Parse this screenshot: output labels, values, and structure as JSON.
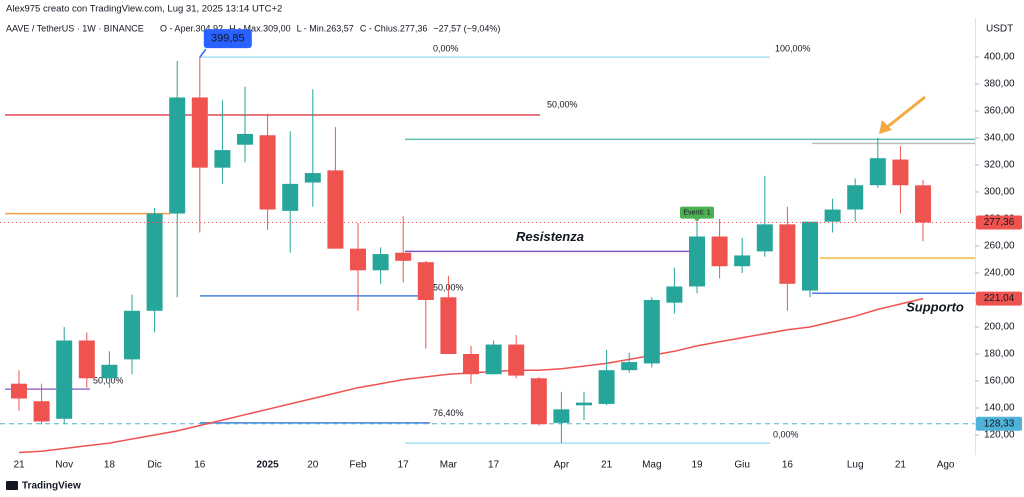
{
  "header": {
    "author_line": "Alex975 creato con TradingView.com, Lug 31, 2025 13:14 UTC+2",
    "symbol": "AAVE / TetherUS · 1W · BINANCE",
    "ohlc": [
      {
        "prefix": "O - Aper.",
        "text": "304,92"
      },
      {
        "prefix": "H - Max.",
        "text": "309,00"
      },
      {
        "prefix": "L - Min.",
        "text": "263,57"
      },
      {
        "prefix": "C - Chius.",
        "text": "277,36"
      }
    ],
    "change": "−27,57 (−9,04%)",
    "currency": "USDT"
  },
  "chart_data": {
    "type": "candlestick",
    "categories": [
      "21",
      null,
      "Nov",
      null,
      "18",
      null,
      "Dic",
      null,
      "16",
      null,
      null,
      "2025",
      null,
      "20",
      null,
      "Feb",
      null,
      "17",
      null,
      "Mar",
      null,
      "17",
      null,
      null,
      "Apr",
      null,
      "21",
      null,
      "Mag",
      null,
      "19",
      null,
      "Giu",
      null,
      "16",
      null,
      null,
      "Lug",
      null,
      "21",
      null,
      "Ago"
    ],
    "open": [
      158,
      145,
      132,
      190,
      162,
      176,
      212,
      284,
      370,
      318,
      335,
      342,
      286,
      307,
      316,
      258,
      242,
      255,
      248,
      222,
      180,
      165,
      187,
      162,
      129,
      142,
      143,
      168,
      173,
      218,
      230,
      267,
      245,
      256,
      276,
      227,
      278,
      287,
      305,
      324,
      304.92,
      null
    ],
    "high": [
      168,
      158,
      200,
      196,
      182,
      224,
      288,
      397,
      399.85,
      368,
      378,
      358,
      345,
      376,
      348,
      277,
      259,
      282,
      249,
      238,
      186,
      190,
      194,
      163,
      152,
      152,
      183,
      181,
      222,
      244,
      278,
      280,
      266,
      312,
      289,
      278,
      295,
      310,
      340,
      334,
      309.0,
      null
    ],
    "low": [
      138,
      128,
      128,
      155,
      155,
      165,
      196,
      222,
      270,
      306,
      322,
      272,
      255,
      289,
      260,
      212,
      232,
      233,
      184,
      182,
      158,
      165,
      162,
      127,
      114,
      131,
      142,
      166,
      170,
      210,
      225,
      236,
      240,
      252,
      212,
      222,
      270,
      278,
      303,
      284,
      263.57,
      null
    ],
    "close": [
      147,
      130,
      190,
      162,
      172,
      212,
      284,
      370,
      318,
      331,
      343,
      287,
      306,
      314,
      258,
      242,
      254,
      249,
      220,
      180,
      165,
      187,
      164,
      128,
      139,
      144,
      168,
      174,
      220,
      230,
      267,
      245,
      253,
      276,
      232,
      278,
      287,
      305,
      325,
      305,
      277.36,
      null
    ],
    "up_color": "#26a69a",
    "down_color": "#ef5350",
    "ma": {
      "color": "#ef5350",
      "values": [
        107,
        108,
        110,
        112,
        114,
        117,
        120,
        123,
        127,
        131,
        135,
        139,
        143,
        147,
        151,
        155,
        158,
        161,
        163,
        165,
        166,
        167,
        168,
        168,
        169,
        171,
        173,
        176,
        179,
        182,
        186,
        189,
        192,
        195,
        198,
        200,
        204,
        208,
        213,
        217,
        221.04,
        null
      ]
    },
    "ylim": [
      105,
      427
    ],
    "yticks": [
      {
        "value": 120,
        "label": "120,00"
      },
      {
        "value": 140,
        "label": "140,00"
      },
      {
        "value": 160,
        "label": "160,00"
      },
      {
        "value": 180,
        "label": "180,00"
      },
      {
        "value": 200,
        "label": "200,00"
      },
      {
        "value": 220,
        "label": "220,00"
      },
      {
        "value": 240,
        "label": "240,00"
      },
      {
        "value": 260,
        "label": "260,00"
      },
      {
        "value": 280,
        "label": "280,00"
      },
      {
        "value": 300,
        "label": "300,00"
      },
      {
        "value": 320,
        "label": "320,00"
      },
      {
        "value": 340,
        "label": "340,00"
      },
      {
        "value": 360,
        "label": "360,00"
      },
      {
        "value": 380,
        "label": "380,00"
      },
      {
        "value": 400,
        "label": "400,00"
      }
    ],
    "price_labels": [
      {
        "value": 277.36,
        "label": "277,36",
        "color": "#ef5350"
      },
      {
        "value": 221.04,
        "label": "221,04",
        "color": "#ef5350"
      },
      {
        "value": 128.33,
        "label": "128,33",
        "color": "#4fb3d9"
      }
    ],
    "drawings": [
      {
        "value": 399.85,
        "color": "#a6e0ef",
        "labels": [
          "0,00%",
          "100,00%"
        ]
      },
      {
        "value": 357,
        "color": "#e0485a",
        "labels": [
          "50,00%"
        ]
      },
      {
        "value": 339,
        "color": "#5bbfae"
      },
      {
        "value": 336,
        "color": "#bdbdbd"
      },
      {
        "value": 284,
        "color": "#f5a040"
      },
      {
        "value": 256,
        "color": "#7e57c2",
        "labels": [
          "Resistenza"
        ]
      },
      {
        "value": 251,
        "color": "#f5b942"
      },
      {
        "value": 223,
        "color": "#4a80e0",
        "labels": [
          "50,00%"
        ]
      },
      {
        "value": 225,
        "color": "#4a80e0",
        "labels": [
          "Supporto"
        ]
      },
      {
        "value": 129,
        "color": "#4a80e0",
        "labels": [
          "76,40%"
        ]
      },
      {
        "value": 154,
        "color": "#9c6fd0",
        "labels": [
          "50,00%"
        ]
      },
      {
        "value": 114,
        "color": "#a6e0ef",
        "labels": [
          "0,00%"
        ]
      },
      {
        "value": 128.33,
        "color": "#4fb3d9"
      }
    ],
    "callout": {
      "value": 399.85,
      "label": "399,85"
    },
    "event": {
      "label": "Eventi: 1"
    }
  },
  "footer": {
    "brand": "TradingView"
  }
}
